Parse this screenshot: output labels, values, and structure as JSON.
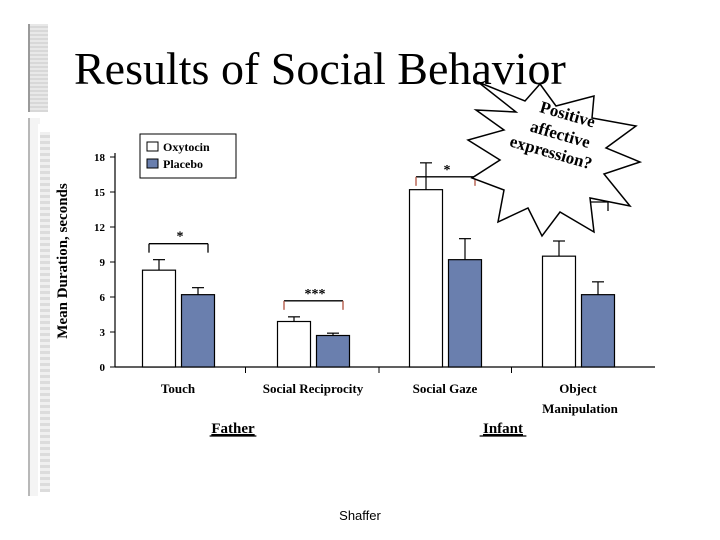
{
  "slide": {
    "title": "Results of Social Behavior",
    "footer": "Shaffer"
  },
  "callout": {
    "lines": [
      "Positive",
      "affective",
      "expression?"
    ]
  },
  "chart_data": {
    "type": "bar",
    "ylabel": "Mean Duration, seconds",
    "ylim": [
      0,
      18
    ],
    "yticks": [
      0,
      3,
      6,
      9,
      12,
      15,
      18
    ],
    "grid": false,
    "legend_position": "top-left",
    "categories": [
      "Touch",
      "Social Reciprocity",
      "Social Gaze",
      "Object Manipulation"
    ],
    "group_labels": [
      "Father",
      "Infant"
    ],
    "series": [
      {
        "name": "Oxytocin",
        "color": "#ffffff",
        "values": [
          8.3,
          3.9,
          15.2,
          9.5
        ],
        "errors": [
          0.9,
          0.4,
          2.3,
          1.3
        ]
      },
      {
        "name": "Placebo",
        "color": "#6a7fae",
        "values": [
          6.2,
          2.7,
          9.2,
          6.2
        ],
        "errors": [
          0.6,
          0.2,
          1.8,
          1.1
        ]
      }
    ],
    "significance": [
      "*",
      "***",
      "*",
      "*"
    ]
  },
  "colors": {
    "placebo": "#6a7fae",
    "bracket_accent": "#b0523f"
  }
}
